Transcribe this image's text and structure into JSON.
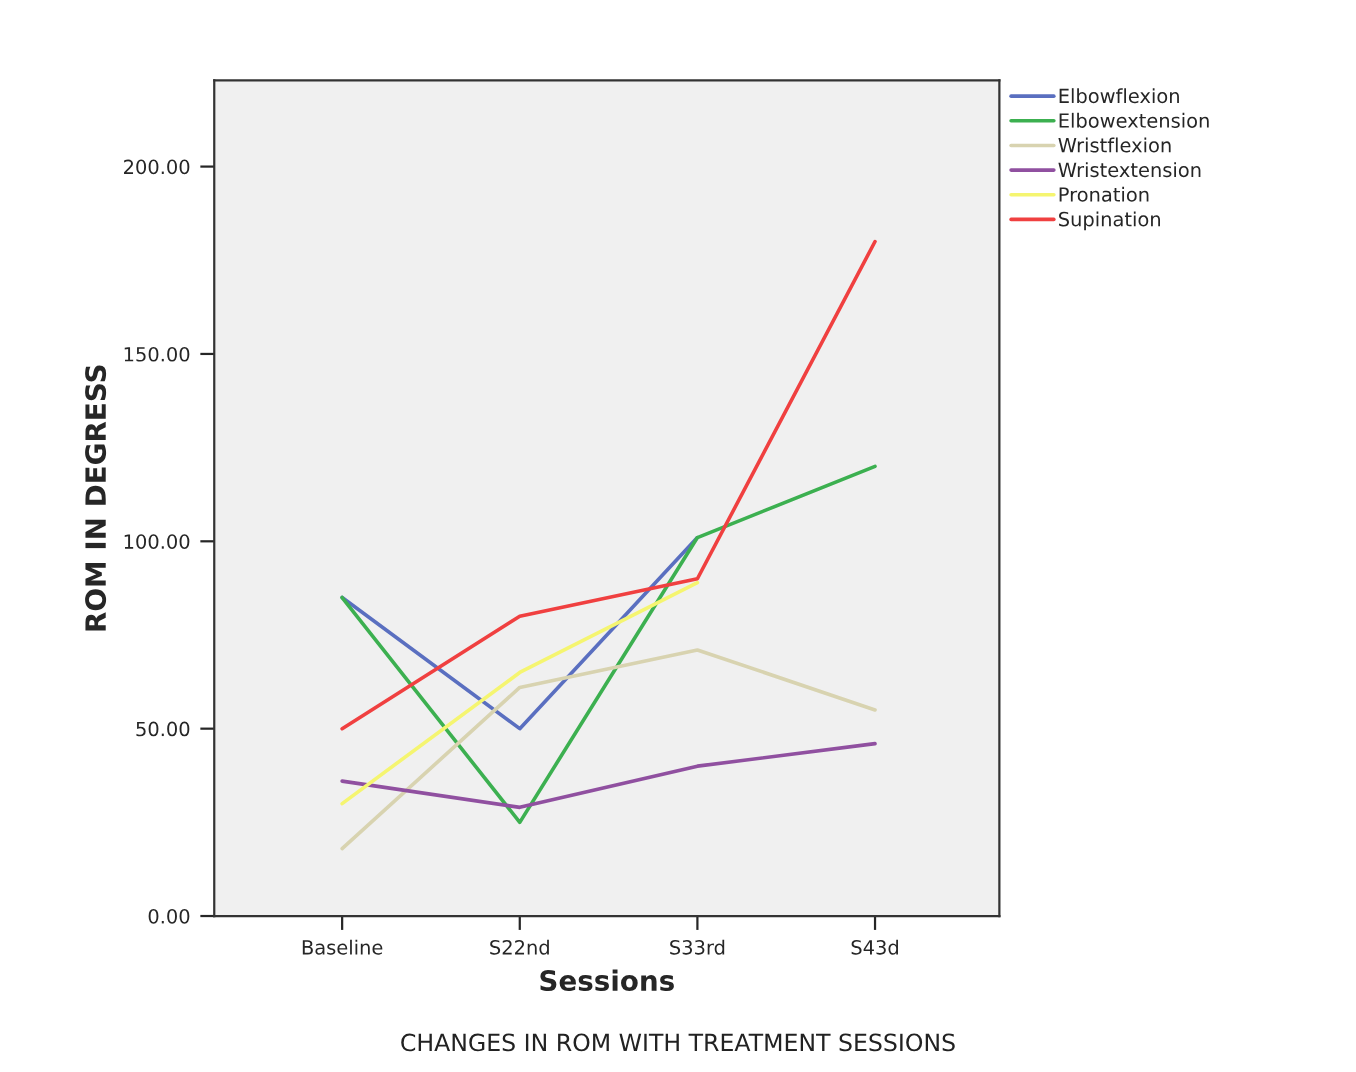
{
  "chart_data": {
    "type": "line",
    "xlabel": "Sessions",
    "ylabel": "ROM IN DEGRESS",
    "categories": [
      "Baseline",
      "S22nd",
      "S33rd",
      "S43d"
    ],
    "series": [
      {
        "name": "Elbowflexion",
        "color": "#5a6fc0",
        "values": [
          85,
          50,
          101,
          null
        ]
      },
      {
        "name": "Elbowextension",
        "color": "#3cb050",
        "values": [
          85,
          25,
          101,
          120
        ]
      },
      {
        "name": "Wristflexion",
        "color": "#d8d3b0",
        "values": [
          18,
          61,
          71,
          55
        ]
      },
      {
        "name": "Wristextension",
        "color": "#9050a0",
        "values": [
          36,
          29,
          40,
          46
        ]
      },
      {
        "name": "Pronation",
        "color": "#f5f570",
        "values": [
          30,
          65,
          89,
          null
        ]
      },
      {
        "name": "Supination",
        "color": "#f04040",
        "values": [
          50,
          80,
          90,
          180
        ]
      }
    ],
    "ylim": [
      0,
      223
    ],
    "yticks": [
      {
        "value": 0,
        "label": "0.00"
      },
      {
        "value": 50,
        "label": "50.00"
      },
      {
        "value": 100,
        "label": "100.00"
      },
      {
        "value": 150,
        "label": "150.00"
      },
      {
        "value": 200,
        "label": "200.00"
      }
    ],
    "legend": "top right",
    "grid": false,
    "marker": "none",
    "line_style": "solid",
    "annotations": [
      "CHANGES IN ROM WITH TREATMENT SESSIONS"
    ]
  }
}
